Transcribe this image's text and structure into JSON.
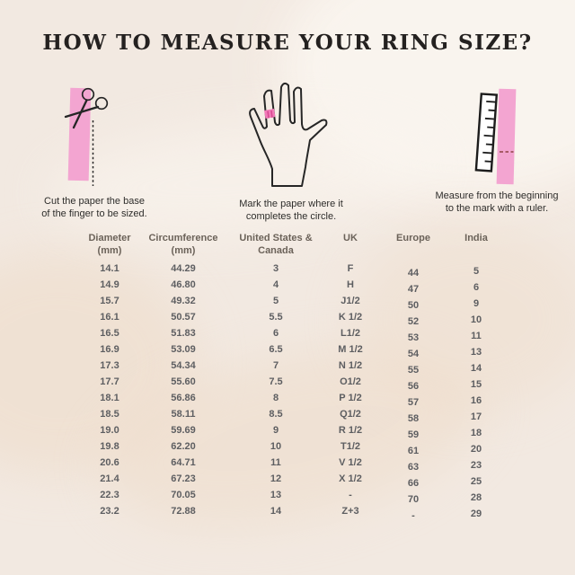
{
  "title": "HOW TO MEASURE YOUR RING SIZE?",
  "steps": [
    {
      "icon": "scissors-paper-strip-icon",
      "caption_line1": "Cut the paper the base",
      "caption_line2": "of the finger to be sized."
    },
    {
      "icon": "hand-with-ring-icon",
      "caption_line1": "Mark the paper where it",
      "caption_line2": "completes the circle."
    },
    {
      "icon": "ruler-paper-strip-icon",
      "caption_line1": "Measure from the beginning",
      "caption_line2": "to the mark with a ruler."
    }
  ],
  "table": {
    "columns": [
      {
        "label": "Diameter",
        "sublabel": "(mm)"
      },
      {
        "label": "Circumference",
        "sublabel": "(mm)"
      },
      {
        "label": "United States &",
        "sublabel": "Canada"
      },
      {
        "label": "UK",
        "sublabel": ""
      },
      {
        "label": "Europe",
        "sublabel": ""
      },
      {
        "label": "India",
        "sublabel": ""
      }
    ],
    "rows": [
      [
        "14.1",
        "44.29",
        "3",
        "F",
        "44",
        "5"
      ],
      [
        "14.9",
        "46.80",
        "4",
        "H",
        "47",
        "6"
      ],
      [
        "15.7",
        "49.32",
        "5",
        "J1/2",
        "50",
        "9"
      ],
      [
        "16.1",
        "50.57",
        "5.5",
        "K 1/2",
        "52",
        "10"
      ],
      [
        "16.5",
        "51.83",
        "6",
        "L1/2",
        "53",
        "11"
      ],
      [
        "16.9",
        "53.09",
        "6.5",
        "M 1/2",
        "54",
        "13"
      ],
      [
        "17.3",
        "54.34",
        "7",
        "N 1/2",
        "55",
        "14"
      ],
      [
        "17.7",
        "55.60",
        "7.5",
        "O1/2",
        "56",
        "15"
      ],
      [
        "18.1",
        "56.86",
        "8",
        "P 1/2",
        "57",
        "16"
      ],
      [
        "18.5",
        "58.11",
        "8.5",
        "Q1/2",
        "58",
        "17"
      ],
      [
        "19.0",
        "59.69",
        "9",
        "R 1/2",
        "59",
        "18"
      ],
      [
        "19.8",
        "62.20",
        "10",
        "T1/2",
        "61",
        "20"
      ],
      [
        "20.6",
        "64.71",
        "11",
        "V 1/2",
        "63",
        "23"
      ],
      [
        "21.4",
        "67.23",
        "12",
        "X 1/2",
        "66",
        "25"
      ],
      [
        "22.3",
        "70.05",
        "13",
        "-",
        "70",
        "28"
      ],
      [
        "23.2",
        "72.88",
        "14",
        "Z+3",
        "-",
        "29"
      ]
    ]
  },
  "colors": {
    "background": "#f2e9e1",
    "brush_light": "#faf5ef",
    "brush_tan": "#eedbc8",
    "paper_pink": "#f3a5d1",
    "ring_pink": "#f17ab8",
    "ring_mark_pink": "#d6478f",
    "ruler_mark_dark": "#a85b67",
    "outline_dark": "#262626",
    "title_text": "#242120",
    "caption_text": "#2e2d2b",
    "header_text": "#6b6259",
    "cell_text": "#5d5e61"
  }
}
